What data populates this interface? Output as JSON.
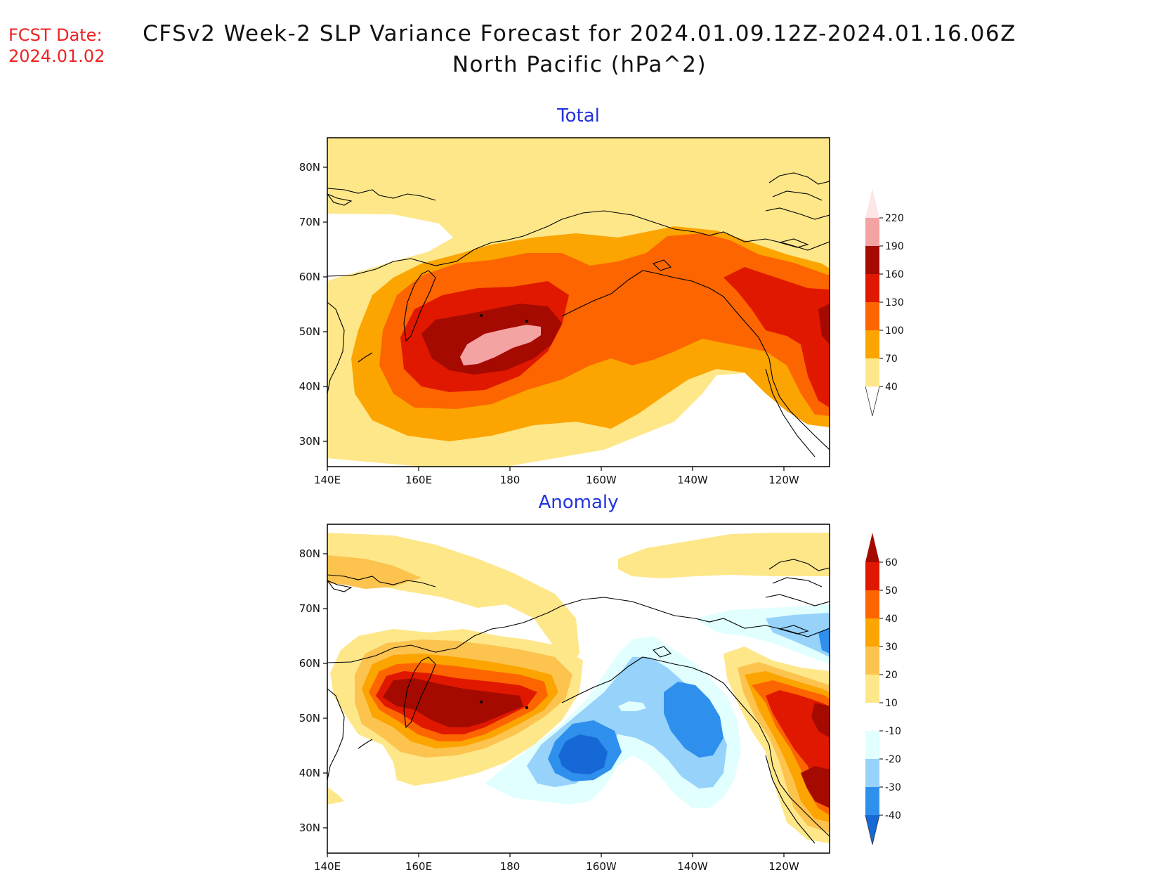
{
  "header": {
    "fcst_label": "FCST Date:",
    "fcst_date": "2024.01.02",
    "title": "CFSv2 Week-2 SLP Variance Forecast for 2024.01.09.12Z-2024.01.16.06Z",
    "subtitle": "North Pacific (hPa^2)"
  },
  "map_axes": {
    "lat_labels": [
      "80N",
      "70N",
      "60N",
      "50N",
      "40N",
      "30N"
    ],
    "lon_labels": [
      "140E",
      "160E",
      "180",
      "160W",
      "140W",
      "120W"
    ]
  },
  "panels": [
    {
      "title": "Total",
      "colorbar": {
        "labels": [
          "220",
          "190",
          "160",
          "130",
          "100",
          "70",
          "40"
        ],
        "colors": [
          "#fde6e6",
          "#f4a3a3",
          "#a50a00",
          "#e01800",
          "#fc6500",
          "#fca400",
          "#fee789",
          "#ffffff"
        ]
      }
    },
    {
      "title": "Anomaly",
      "colorbar": {
        "labels": [
          "60",
          "50",
          "40",
          "30",
          "20",
          "10",
          "-10",
          "-20",
          "-30",
          "-40"
        ],
        "colors": [
          "#a50a00",
          "#e01800",
          "#fc6500",
          "#fca400",
          "#fcc34f",
          "#fee789",
          "#ffffff",
          "#e0fffe",
          "#96d2fa",
          "#2f8fec",
          "#1668d6"
        ]
      }
    }
  ],
  "colors": {
    "title_red": "#ee2222",
    "panel_title_blue": "#2233dd"
  }
}
